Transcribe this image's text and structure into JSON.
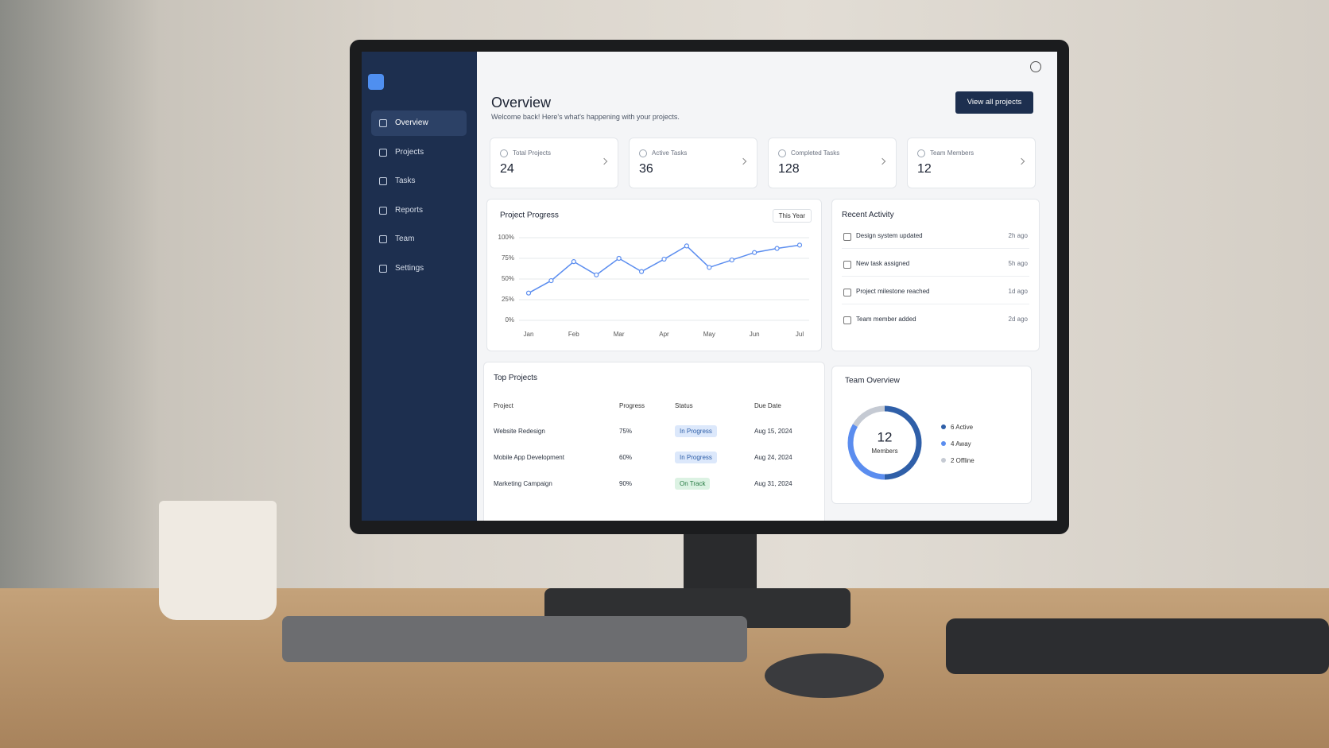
{
  "sidebar": {
    "nav": [
      "Overview",
      "Projects",
      "Tasks",
      "Reports",
      "Team",
      "Settings"
    ]
  },
  "header": {
    "title": "Overview",
    "subtitle": "Welcome back! Here's what's happening with your projects.",
    "button": "View all projects"
  },
  "stats": [
    {
      "label": "Total Projects",
      "value": 24
    },
    {
      "label": "Active Tasks",
      "value": 36
    },
    {
      "label": "Completed Tasks",
      "value": 128
    },
    {
      "label": "Team Members",
      "value": 12
    }
  ],
  "progress_filter": "This Year",
  "recent_activity": {
    "title": "Recent Activity",
    "items": [
      {
        "text": "Design system updated",
        "time": "2h ago"
      },
      {
        "text": "New task assigned",
        "time": "5h ago"
      },
      {
        "text": "Project milestone reached",
        "time": "1d ago"
      },
      {
        "text": "Team member added",
        "time": "2d ago"
      }
    ]
  },
  "top_projects": {
    "title": "Top Projects",
    "columns": [
      "Project",
      "Progress",
      "Status",
      "Due Date"
    ],
    "rows": [
      [
        "Website Redesign",
        "75%",
        "In Progress",
        "Aug 15, 2024"
      ],
      [
        "Mobile App Development",
        "60%",
        "In Progress",
        "Aug 24, 2024"
      ],
      [
        "Marketing Campaign",
        "90%",
        "On Track",
        "Aug 31, 2024"
      ]
    ]
  },
  "chart_data": [
    {
      "type": "line",
      "title": "Project Progress",
      "categories": [
        "Jan",
        null,
        "Feb",
        null,
        "Mar",
        null,
        "Apr",
        null,
        "May",
        null,
        "Jun",
        null,
        "Jul"
      ],
      "values": [
        33,
        48,
        71,
        55,
        75,
        59,
        74,
        90,
        64,
        73,
        82,
        87,
        91
      ],
      "color": "#5b8def",
      "ylim": [
        0,
        100
      ],
      "yticks": [
        {
          "value": 0,
          "label": "0%"
        },
        {
          "value": 25,
          "label": "25%"
        },
        {
          "value": 50,
          "label": "50%"
        },
        {
          "value": 75,
          "label": "75%"
        },
        {
          "value": 100,
          "label": "100%"
        }
      ],
      "grid": true
    },
    {
      "type": "pie",
      "title": "Team Overview",
      "categories": [
        "6 Active",
        "4 Away",
        "2 Offline"
      ],
      "values": [
        6,
        4,
        2
      ],
      "colors": [
        "#2f5fa8",
        "#5b8def",
        "#c5cad3"
      ],
      "center_value": 12,
      "center_label": "Members"
    }
  ]
}
